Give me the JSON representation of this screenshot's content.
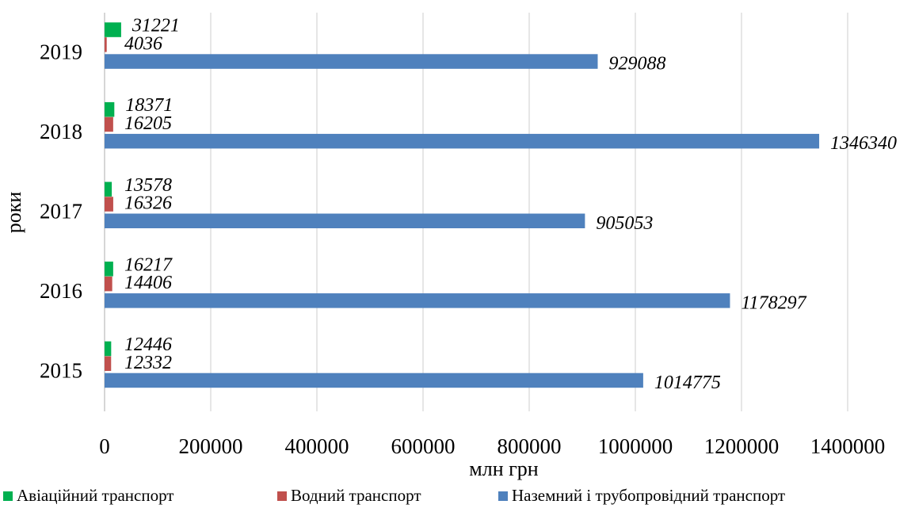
{
  "chart_data": {
    "type": "bar",
    "orientation": "horizontal",
    "title": "",
    "xlabel": "млн грн",
    "ylabel": "роки",
    "categories": [
      "2015",
      "2016",
      "2017",
      "2018",
      "2019"
    ],
    "xlim": [
      0,
      1400000
    ],
    "x_ticks": [
      "0",
      "200000",
      "400000",
      "600000",
      "800000",
      "1000000",
      "1200000",
      "1400000"
    ],
    "grid": "vertical",
    "legend_position": "bottom",
    "data_labels": true,
    "series": [
      {
        "name": "Авіаційний транспорт",
        "color": "#00b050",
        "values": [
          12446,
          16217,
          13578,
          18371,
          31221
        ],
        "labels": [
          "12446",
          "16217",
          "13578",
          "18371",
          "31221"
        ]
      },
      {
        "name": "Водний транспорт",
        "color": "#c0504d",
        "values": [
          12332,
          14406,
          16326,
          16205,
          4036
        ],
        "labels": [
          "12332",
          "14406",
          "16326",
          "16205",
          "4036"
        ]
      },
      {
        "name": "Наземний і трубопровідний транспорт",
        "color": "#4f81bd",
        "values": [
          1014775,
          1178297,
          905053,
          1346340,
          929088
        ],
        "labels": [
          "1014775",
          "1178297",
          "905053",
          "1346340",
          "929088"
        ]
      }
    ]
  }
}
